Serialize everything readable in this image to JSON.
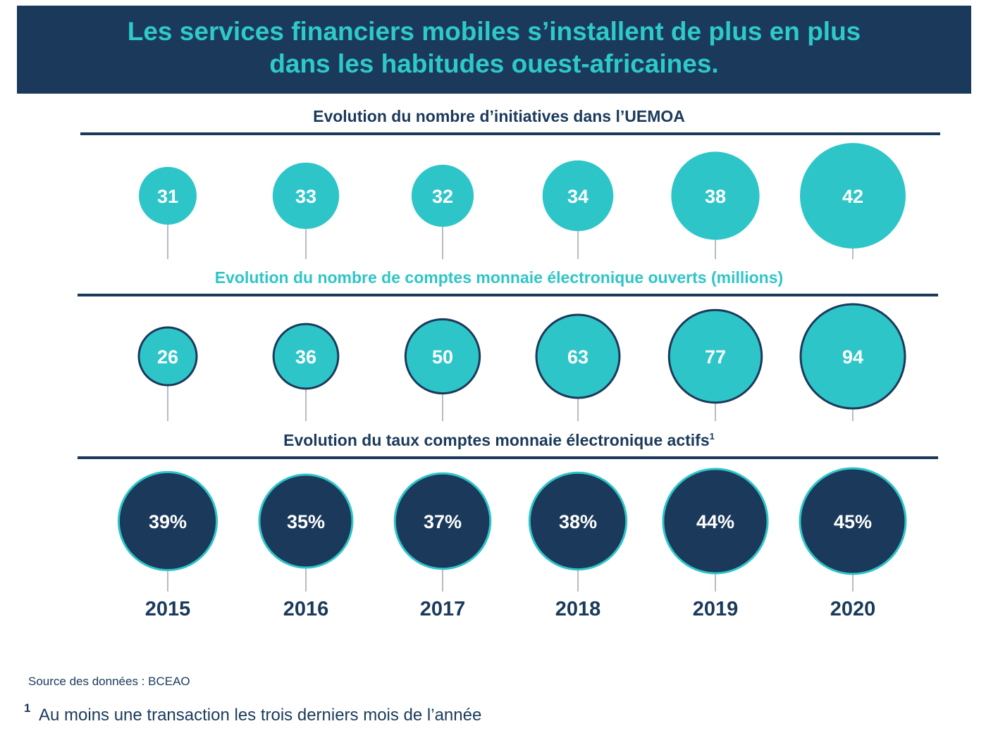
{
  "header": {
    "title_line1": "Les services financiers mobiles s’installent de plus en plus",
    "title_line2": "dans les habitudes ouest-africaines."
  },
  "colors": {
    "navy": "#1b3a5b",
    "teal": "#2ec5c9",
    "stem": "#b8bcc2"
  },
  "chart_data": {
    "type": "bubble",
    "categories": [
      "2015",
      "2016",
      "2017",
      "2018",
      "2019",
      "2020"
    ],
    "rows": [
      {
        "title": "Evolution du nombre d’initiatives dans l’UEMOA",
        "title_superscript": "",
        "style": "teal",
        "values": [
          31,
          33,
          32,
          34,
          38,
          42
        ],
        "labels": [
          "31",
          "33",
          "32",
          "34",
          "38",
          "42"
        ]
      },
      {
        "title": "Evolution du nombre de comptes monnaie électronique ouverts (millions)",
        "title_superscript": "",
        "style": "teal-outlined",
        "values": [
          26,
          36,
          50,
          63,
          77,
          94
        ],
        "labels": [
          "26",
          "36",
          "50",
          "63",
          "77",
          "94"
        ]
      },
      {
        "title": "Evolution du taux comptes monnaie électronique actifs",
        "title_superscript": "1",
        "style": "navy",
        "values": [
          39,
          35,
          37,
          38,
          44,
          45
        ],
        "labels": [
          "39%",
          "35%",
          "37%",
          "38%",
          "44%",
          "45%"
        ]
      }
    ]
  },
  "footer": {
    "source": "Source des données : BCEAO",
    "footnote_marker": "1",
    "footnote": "Au moins une transaction les trois derniers mois de l’année"
  }
}
